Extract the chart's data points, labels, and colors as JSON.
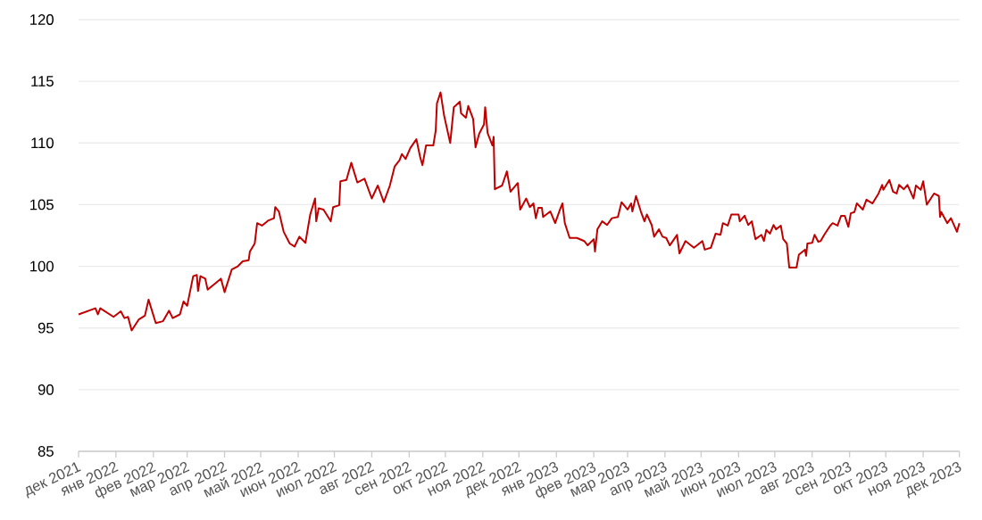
{
  "chart_data": {
    "type": "line",
    "x": [
      "2021-12-01",
      "2021-12-15",
      "2021-12-17",
      "2021-12-19",
      "2021-12-30",
      "2022-01-05",
      "2022-01-08",
      "2022-01-11",
      "2022-01-14",
      "2022-01-20",
      "2022-01-25",
      "2022-01-28",
      "2022-02-03",
      "2022-02-09",
      "2022-02-14",
      "2022-02-17",
      "2022-02-23",
      "2022-02-26",
      "2022-03-01",
      "2022-03-06",
      "2022-03-09",
      "2022-03-10",
      "2022-03-12",
      "2022-03-16",
      "2022-03-18",
      "2022-03-29",
      "2022-04-01",
      "2022-04-07",
      "2022-04-12",
      "2022-04-16",
      "2022-04-21",
      "2022-04-22",
      "2022-04-26",
      "2022-04-28",
      "2022-05-02",
      "2022-05-07",
      "2022-05-12",
      "2022-05-13",
      "2022-05-16",
      "2022-05-20",
      "2022-05-25",
      "2022-05-29",
      "2022-06-02",
      "2022-06-07",
      "2022-06-11",
      "2022-06-15",
      "2022-06-16",
      "2022-06-18",
      "2022-06-22",
      "2022-06-28",
      "2022-06-30",
      "2022-07-05",
      "2022-07-06",
      "2022-07-11",
      "2022-07-15",
      "2022-07-20",
      "2022-07-26",
      "2022-08-01",
      "2022-08-06",
      "2022-08-11",
      "2022-08-16",
      "2022-08-20",
      "2022-08-24",
      "2022-08-26",
      "2022-08-29",
      "2022-09-02",
      "2022-09-07",
      "2022-09-10",
      "2022-09-12",
      "2022-09-15",
      "2022-09-21",
      "2022-09-23",
      "2022-09-24",
      "2022-09-27",
      "2022-09-30",
      "2022-10-05",
      "2022-10-08",
      "2022-10-13",
      "2022-10-14",
      "2022-10-18",
      "2022-10-20",
      "2022-10-24",
      "2022-10-26",
      "2022-10-29",
      "2022-11-02",
      "2022-11-03",
      "2022-11-05",
      "2022-11-09",
      "2022-11-10",
      "2022-11-11",
      "2022-11-17",
      "2022-11-21",
      "2022-11-24",
      "2022-11-30",
      "2022-12-02",
      "2022-12-07",
      "2022-12-10",
      "2022-12-13",
      "2022-12-15",
      "2022-12-17",
      "2022-12-20",
      "2022-12-21",
      "2022-12-27",
      "2022-12-31",
      "2023-01-04",
      "2023-01-06",
      "2023-01-08",
      "2023-01-12",
      "2023-01-18",
      "2023-01-24",
      "2023-01-27",
      "2023-02-01",
      "2023-02-02",
      "2023-02-04",
      "2023-02-08",
      "2023-02-12",
      "2023-02-16",
      "2023-02-21",
      "2023-02-24",
      "2023-03-01",
      "2023-03-04",
      "2023-03-05",
      "2023-03-08",
      "2023-03-12",
      "2023-03-15",
      "2023-03-17",
      "2023-03-21",
      "2023-03-23",
      "2023-03-27",
      "2023-03-30",
      "2023-04-02",
      "2023-04-05",
      "2023-04-11",
      "2023-04-13",
      "2023-04-18",
      "2023-04-25",
      "2023-05-02",
      "2023-05-04",
      "2023-05-09",
      "2023-05-13",
      "2023-05-17",
      "2023-05-19",
      "2023-05-23",
      "2023-05-26",
      "2023-06-01",
      "2023-06-02",
      "2023-06-06",
      "2023-06-09",
      "2023-06-12",
      "2023-06-15",
      "2023-06-20",
      "2023-06-22",
      "2023-06-24",
      "2023-06-27",
      "2023-06-30",
      "2023-07-02",
      "2023-07-06",
      "2023-07-08",
      "2023-07-11",
      "2023-07-13",
      "2023-07-19",
      "2023-07-21",
      "2023-07-26",
      "2023-07-27",
      "2023-07-28",
      "2023-08-01",
      "2023-08-03",
      "2023-08-06",
      "2023-08-08",
      "2023-08-11",
      "2023-08-16",
      "2023-08-18",
      "2023-08-22",
      "2023-08-25",
      "2023-08-28",
      "2023-08-31",
      "2023-09-02",
      "2023-09-05",
      "2023-09-07",
      "2023-09-12",
      "2023-09-15",
      "2023-09-20",
      "2023-09-25",
      "2023-09-28",
      "2023-09-29",
      "2023-10-04",
      "2023-10-07",
      "2023-10-10",
      "2023-10-12",
      "2023-10-16",
      "2023-10-19",
      "2023-10-24",
      "2023-10-26",
      "2023-10-30",
      "2023-11-01",
      "2023-11-04",
      "2023-11-10",
      "2023-11-14",
      "2023-11-15",
      "2023-11-16",
      "2023-11-21",
      "2023-11-24",
      "2023-11-29",
      "2023-12-01"
    ],
    "series": [
      {
        "color": "#c00000",
        "values": [
          96.1,
          96.6,
          96.1,
          96.6,
          95.9,
          96.35,
          95.8,
          95.9,
          94.8,
          95.7,
          96.0,
          97.3,
          95.4,
          95.55,
          96.4,
          95.8,
          96.1,
          97.15,
          96.8,
          99.2,
          99.3,
          98.0,
          99.2,
          99.0,
          98.1,
          99.0,
          97.9,
          99.75,
          100.0,
          100.4,
          100.5,
          101.2,
          101.85,
          103.5,
          103.3,
          103.7,
          103.9,
          104.8,
          104.45,
          102.8,
          101.85,
          101.6,
          102.4,
          101.9,
          104.2,
          105.5,
          103.65,
          104.7,
          104.6,
          103.65,
          104.8,
          104.95,
          106.9,
          107.0,
          108.4,
          106.8,
          107.1,
          105.5,
          106.55,
          105.2,
          106.55,
          108.1,
          108.6,
          109.1,
          108.7,
          109.6,
          110.3,
          108.9,
          108.2,
          109.8,
          109.8,
          111.0,
          113.2,
          114.1,
          112.2,
          110.0,
          112.9,
          113.35,
          112.4,
          112.05,
          113.0,
          111.95,
          109.65,
          110.75,
          111.5,
          112.9,
          110.8,
          109.8,
          110.5,
          106.25,
          106.55,
          107.7,
          106.05,
          106.75,
          104.6,
          105.5,
          104.8,
          105.1,
          103.9,
          104.75,
          104.75,
          104.0,
          104.45,
          103.5,
          104.6,
          105.1,
          103.5,
          102.3,
          102.3,
          102.05,
          101.7,
          102.2,
          101.2,
          103.0,
          103.65,
          103.35,
          103.9,
          104.0,
          105.2,
          104.6,
          105.1,
          104.45,
          105.7,
          104.45,
          103.65,
          104.2,
          103.35,
          102.4,
          103.0,
          102.4,
          102.3,
          101.7,
          102.55,
          101.05,
          102.05,
          101.5,
          102.05,
          101.35,
          101.5,
          102.65,
          102.55,
          103.5,
          103.3,
          104.2,
          104.2,
          103.65,
          104.1,
          103.35,
          103.65,
          102.2,
          102.55,
          102.05,
          102.95,
          102.65,
          103.35,
          103.0,
          103.3,
          102.2,
          101.85,
          99.9,
          99.9,
          100.95,
          101.35,
          100.85,
          101.85,
          101.9,
          102.55,
          102.0,
          102.05,
          102.55,
          103.3,
          103.5,
          103.3,
          104.1,
          104.1,
          103.2,
          104.3,
          104.4,
          105.1,
          104.6,
          105.4,
          105.1,
          105.9,
          106.6,
          106.2,
          107.0,
          106.05,
          105.9,
          106.6,
          106.25,
          106.6,
          105.5,
          106.55,
          106.2,
          106.9,
          105.0,
          105.9,
          105.7,
          104.0,
          104.4,
          103.5,
          103.9,
          102.8,
          103.5
        ]
      }
    ],
    "xlim": [
      "2021-12-01",
      "2023-12-01"
    ],
    "xticks": [
      {
        "value": "2021-12-01",
        "label": "дек 2021"
      },
      {
        "value": "2022-01-01",
        "label": "янв 2022"
      },
      {
        "value": "2022-02-01",
        "label": "фев 2022"
      },
      {
        "value": "2022-03-01",
        "label": "мар 2022"
      },
      {
        "value": "2022-04-01",
        "label": "апр 2022"
      },
      {
        "value": "2022-05-01",
        "label": "май 2022"
      },
      {
        "value": "2022-06-01",
        "label": "июн 2022"
      },
      {
        "value": "2022-07-01",
        "label": "июл 2022"
      },
      {
        "value": "2022-08-01",
        "label": "авг 2022"
      },
      {
        "value": "2022-09-01",
        "label": "сен 2022"
      },
      {
        "value": "2022-10-01",
        "label": "окт 2022"
      },
      {
        "value": "2022-11-01",
        "label": "ноя 2022"
      },
      {
        "value": "2022-12-01",
        "label": "дек 2022"
      },
      {
        "value": "2023-01-01",
        "label": "янв 2023"
      },
      {
        "value": "2023-02-01",
        "label": "фев 2023"
      },
      {
        "value": "2023-03-01",
        "label": "мар 2023"
      },
      {
        "value": "2023-04-01",
        "label": "апр 2023"
      },
      {
        "value": "2023-05-01",
        "label": "май 2023"
      },
      {
        "value": "2023-06-01",
        "label": "июн 2023"
      },
      {
        "value": "2023-07-01",
        "label": "июл 2023"
      },
      {
        "value": "2023-08-01",
        "label": "авг 2023"
      },
      {
        "value": "2023-09-01",
        "label": "сен 2023"
      },
      {
        "value": "2023-10-01",
        "label": "окт 2023"
      },
      {
        "value": "2023-11-01",
        "label": "ноя 2023"
      },
      {
        "value": "2023-12-01",
        "label": "дек 2023"
      }
    ],
    "ylim": [
      85,
      120
    ],
    "yticks": [
      85,
      90,
      95,
      100,
      105,
      110,
      115,
      120
    ],
    "grid": "y",
    "legend": false,
    "marker": "none",
    "line_style": "solid"
  }
}
